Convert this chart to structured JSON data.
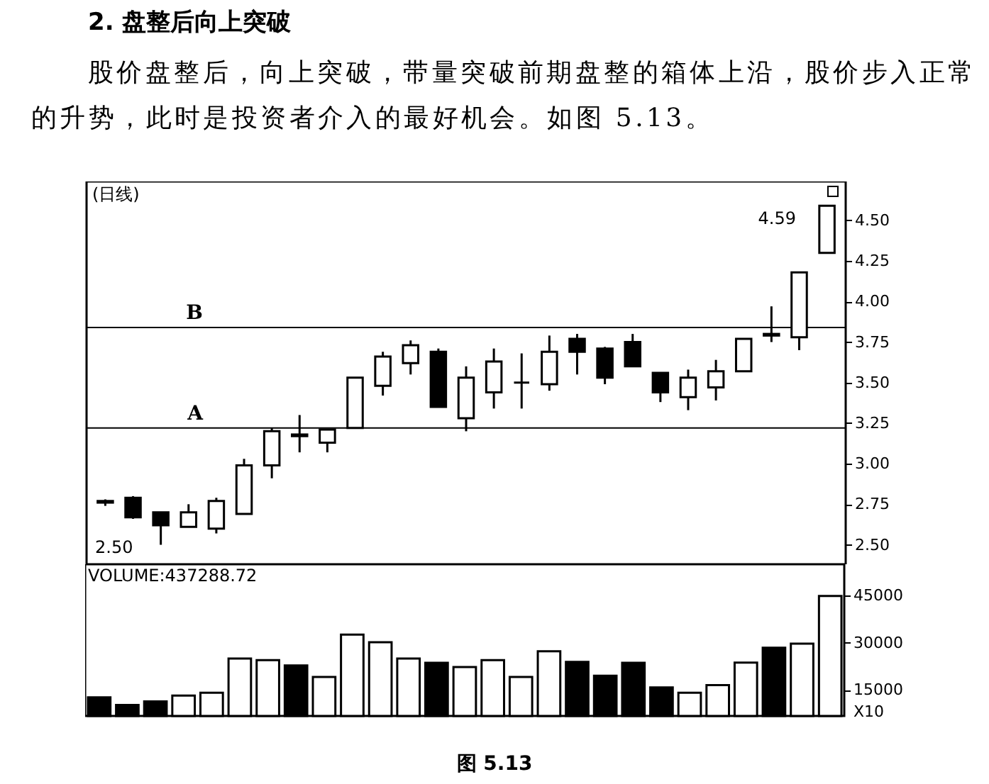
{
  "chart_data": [
    {
      "type": "candlestick",
      "title": "2. 盘整后向上突破",
      "subtitle": "股价盘整后，向上突破，带量突破前期盘整的箱体上沿，股价步入正常的升势，此时是投资者介入的最好机会。如图 5.13。",
      "categories": [
        null,
        null,
        null,
        null,
        null,
        null,
        null,
        null,
        null,
        null,
        null,
        null,
        null,
        null,
        null,
        null,
        null,
        null,
        null,
        null,
        null,
        null,
        null,
        null,
        null,
        null,
        null
      ],
      "ohlc": [
        [
          2.77,
          2.78,
          2.74,
          2.76
        ],
        [
          2.79,
          2.8,
          2.66,
          2.67
        ],
        [
          2.7,
          2.7,
          2.5,
          2.62
        ],
        [
          2.61,
          2.75,
          2.61,
          2.7
        ],
        [
          2.6,
          2.79,
          2.57,
          2.77
        ],
        [
          2.69,
          3.03,
          2.69,
          2.99
        ],
        [
          2.99,
          3.22,
          2.91,
          3.2
        ],
        [
          3.18,
          3.3,
          3.07,
          3.17
        ],
        [
          3.13,
          3.21,
          3.07,
          3.21
        ],
        [
          3.22,
          3.53,
          3.22,
          3.53
        ],
        [
          3.48,
          3.69,
          3.42,
          3.66
        ],
        [
          3.62,
          3.76,
          3.55,
          3.73
        ],
        [
          3.69,
          3.71,
          3.35,
          3.35
        ],
        [
          3.28,
          3.6,
          3.2,
          3.53
        ],
        [
          3.44,
          3.71,
          3.34,
          3.63
        ],
        [
          3.5,
          3.68,
          3.34,
          3.5
        ],
        [
          3.49,
          3.79,
          3.45,
          3.69
        ],
        [
          3.77,
          3.8,
          3.55,
          3.69
        ],
        [
          3.71,
          3.72,
          3.49,
          3.53
        ],
        [
          3.75,
          3.8,
          3.6,
          3.6
        ],
        [
          3.56,
          3.56,
          3.38,
          3.44
        ],
        [
          3.41,
          3.58,
          3.33,
          3.53
        ],
        [
          3.47,
          3.64,
          3.39,
          3.57
        ],
        [
          3.57,
          3.77,
          3.57,
          3.77
        ],
        [
          3.8,
          3.97,
          3.75,
          3.79
        ],
        [
          3.78,
          4.18,
          3.7,
          4.18
        ],
        [
          4.3,
          4.59,
          4.3,
          4.59
        ]
      ],
      "ylim": [
        2.38,
        4.74
      ],
      "yticks": [
        {
          "value": 2.5,
          "label": "2.50"
        },
        {
          "value": 2.75,
          "label": "2.75"
        },
        {
          "value": 3,
          "label": "3.00"
        },
        {
          "value": 3.25,
          "label": "3.25"
        },
        {
          "value": 3.5,
          "label": "3.50"
        },
        {
          "value": 3.75,
          "label": "3.75"
        },
        {
          "value": 4,
          "label": "4.00"
        },
        {
          "value": 4.25,
          "label": "4.25"
        },
        {
          "value": 4.5,
          "label": "4.50"
        }
      ],
      "ref_lines": [
        {
          "axis": "y",
          "value": 3.22,
          "label": "A",
          "color": "#000000"
        },
        {
          "axis": "y",
          "value": 3.84,
          "label": "B",
          "color": "#000000"
        }
      ],
      "annotations": [
        "(日线)",
        "2.50",
        "4.59"
      ],
      "tick_labels": "y"
    },
    {
      "type": "bar",
      "title": "VOLUME:437288.72",
      "ylabel": "X10",
      "categories": [
        null,
        null,
        null,
        null,
        null,
        null,
        null,
        null,
        null,
        null,
        null,
        null,
        null,
        null,
        null,
        null,
        null,
        null,
        null,
        null,
        null,
        null,
        null,
        null,
        null,
        null,
        null
      ],
      "values": [
        12600,
        10200,
        11300,
        13200,
        14100,
        25000,
        24500,
        22800,
        19100,
        32600,
        30200,
        25000,
        23600,
        22300,
        24500,
        19100,
        27300,
        23900,
        19500,
        23600,
        15800,
        14100,
        16500,
        23700,
        28400,
        29700,
        44900
      ],
      "colors": [
        "#000000",
        "#000000",
        "#000000",
        "#ffffff",
        "#ffffff",
        "#ffffff",
        "#ffffff",
        "#000000",
        "#ffffff",
        "#ffffff",
        "#ffffff",
        "#ffffff",
        "#000000",
        "#ffffff",
        "#ffffff",
        "#ffffff",
        "#ffffff",
        "#000000",
        "#000000",
        "#000000",
        "#000000",
        "#ffffff",
        "#ffffff",
        "#ffffff",
        "#000000",
        "#ffffff",
        "#ffffff"
      ],
      "ylim": [
        6700,
        55000
      ],
      "yticks": [
        15000,
        30000,
        45000
      ],
      "annotations": [
        "图 5.13"
      ],
      "tick_labels": "y"
    }
  ]
}
